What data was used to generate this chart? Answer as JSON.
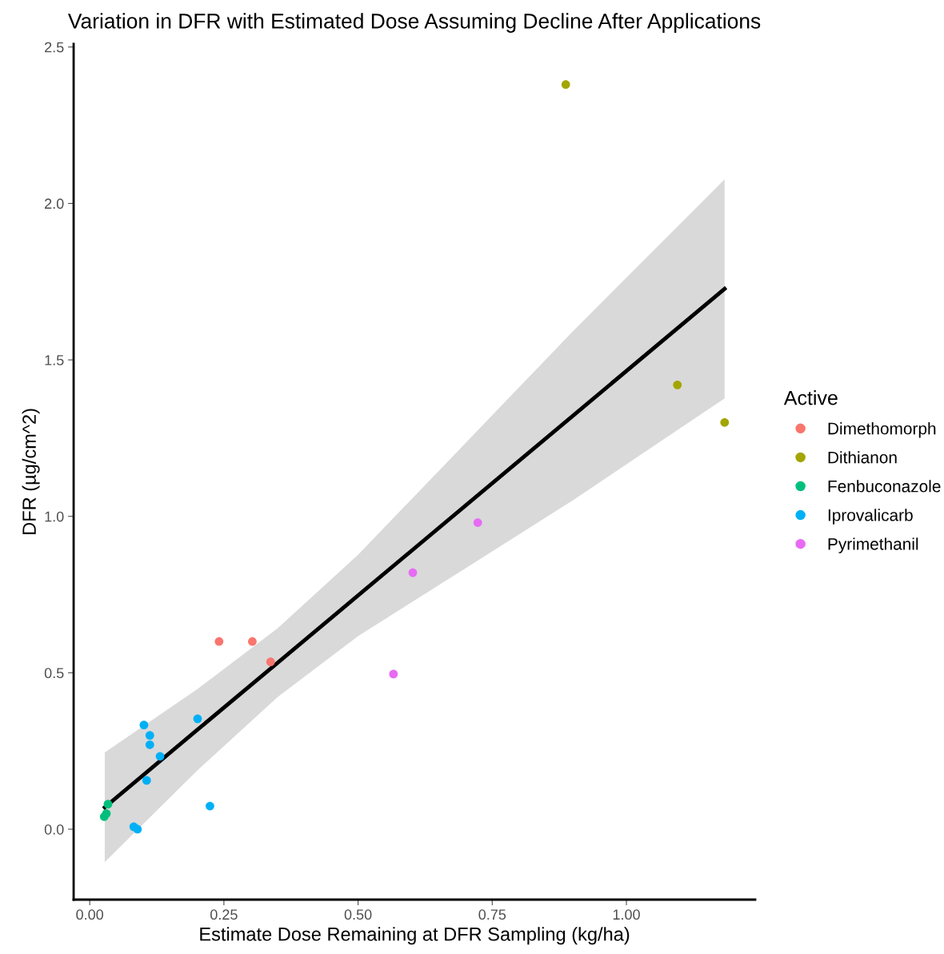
{
  "chart_data": {
    "type": "scatter",
    "title": "Variation in DFR with Estimated Dose Assuming Decline After Applications",
    "xlabel": "Estimate Dose Remaining at DFR Sampling (kg/ha)",
    "ylabel": "DFR (µg/cm^2)",
    "legend_title": "Active",
    "legend": "right",
    "grid": false,
    "marker": "circle",
    "xlim": [
      -0.03,
      1.24
    ],
    "xticks": [
      {
        "value": 0,
        "label": "0.00"
      },
      {
        "value": 0.25,
        "label": "0.25"
      },
      {
        "value": 0.5,
        "label": "0.50"
      },
      {
        "value": 0.75,
        "label": "0.75"
      },
      {
        "value": 1,
        "label": "1.00"
      }
    ],
    "ylim": [
      -0.225,
      2.51
    ],
    "yticks": [
      {
        "value": 0,
        "label": "0.0"
      },
      {
        "value": 0.5,
        "label": "0.5"
      },
      {
        "value": 1,
        "label": "1.0"
      },
      {
        "value": 1.5,
        "label": "1.5"
      },
      {
        "value": 2,
        "label": "2.0"
      },
      {
        "value": 2.5,
        "label": "2.5"
      }
    ],
    "series": [
      {
        "name": "Dimethomorph",
        "color": "#f8766d",
        "x": [
          0.241,
          0.303,
          0.337
        ],
        "values": [
          0.6,
          0.6,
          0.535
        ]
      },
      {
        "name": "Dithianon",
        "color": "#a3a500",
        "x": [
          0.887,
          1.095,
          1.183
        ],
        "values": [
          2.38,
          1.42,
          1.3
        ]
      },
      {
        "name": "Fenbuconazole",
        "color": "#00bf7d",
        "x": [
          0.034,
          0.031,
          0.027
        ],
        "values": [
          0.08,
          0.05,
          0.04
        ]
      },
      {
        "name": "Iprovalicarb",
        "color": "#00b0f6",
        "x": [
          0.101,
          0.112,
          0.112,
          0.131,
          0.106,
          0.201,
          0.224,
          0.082,
          0.089
        ],
        "values": [
          0.333,
          0.3,
          0.27,
          0.233,
          0.156,
          0.353,
          0.074,
          0.008,
          0.0
        ]
      },
      {
        "name": "Pyrimethanil",
        "color": "#e76bf3",
        "x": [
          0.566,
          0.602,
          0.723
        ],
        "values": [
          0.496,
          0.82,
          0.98
        ]
      },
      {
        "type": "line",
        "color": "#000000",
        "marker": "none",
        "x": [
          0.028,
          0.2,
          0.35,
          0.5,
          0.7,
          0.9,
          1.183
        ],
        "values": [
          0.07,
          0.317,
          0.532,
          0.747,
          1.034,
          1.321,
          1.727
        ],
        "lower": [
          -0.105,
          0.187,
          0.422,
          0.617,
          0.834,
          1.051,
          1.377
        ],
        "upper": [
          0.245,
          0.447,
          0.642,
          0.877,
          1.234,
          1.591,
          2.077
        ]
      }
    ]
  }
}
